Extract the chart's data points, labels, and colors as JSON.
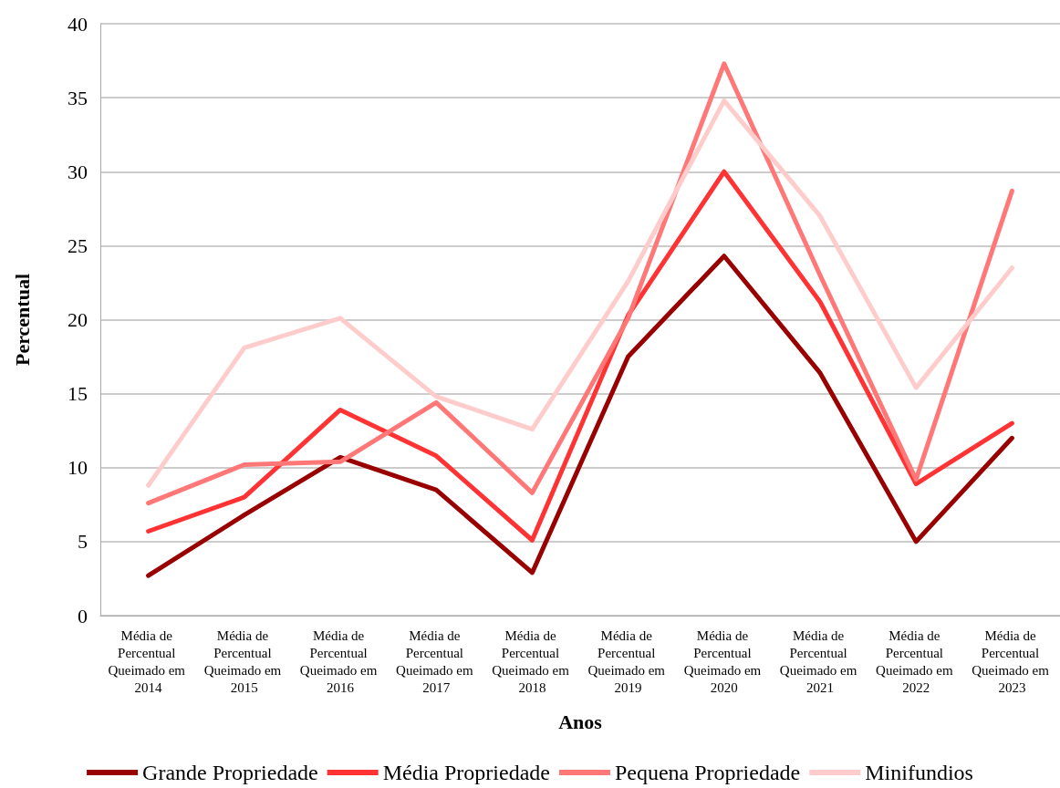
{
  "chart_data": {
    "type": "line",
    "xlabel": "Anos",
    "ylabel": "Percentual",
    "categories": [
      "Média de Percentual Queimado em 2014",
      "Média de Percentual Queimado em 2015",
      "Média de Percentual Queimado em 2016",
      "Média de Percentual Queimado em 2017",
      "Média de Percentual Queimado em 2018",
      "Média de Percentual Queimado em 2019",
      "Média de Percentual Queimado em 2020",
      "Média de Percentual Queimado em 2021",
      "Média de Percentual Queimado em 2022",
      "Média de Percentual Queimado em 2023"
    ],
    "series": [
      {
        "name": "Grande Propriedade",
        "color": "#990000",
        "values": [
          2.7,
          6.8,
          10.7,
          8.5,
          2.9,
          17.5,
          24.3,
          16.4,
          5.0,
          12.0
        ]
      },
      {
        "name": "Média Propriedade",
        "color": "#ff3333",
        "values": [
          5.7,
          8.0,
          13.9,
          10.8,
          5.1,
          20.3,
          30.0,
          21.2,
          8.9,
          13.0
        ]
      },
      {
        "name": "Pequena Propriedade",
        "color": "#ff7777",
        "values": [
          7.6,
          10.2,
          10.4,
          14.4,
          8.3,
          20.1,
          37.3,
          23.0,
          9.2,
          28.7
        ]
      },
      {
        "name": "Minifundios",
        "color": "#ffcccc",
        "values": [
          8.8,
          18.1,
          20.1,
          14.8,
          12.6,
          22.6,
          34.8,
          27.0,
          15.4,
          23.5
        ]
      }
    ],
    "ylim": [
      0,
      40
    ],
    "yticks": [
      0,
      5,
      10,
      15,
      20,
      25,
      30,
      35,
      40
    ],
    "grid": "y",
    "legend": "bottom",
    "marker": "none",
    "line_style": "solid"
  }
}
